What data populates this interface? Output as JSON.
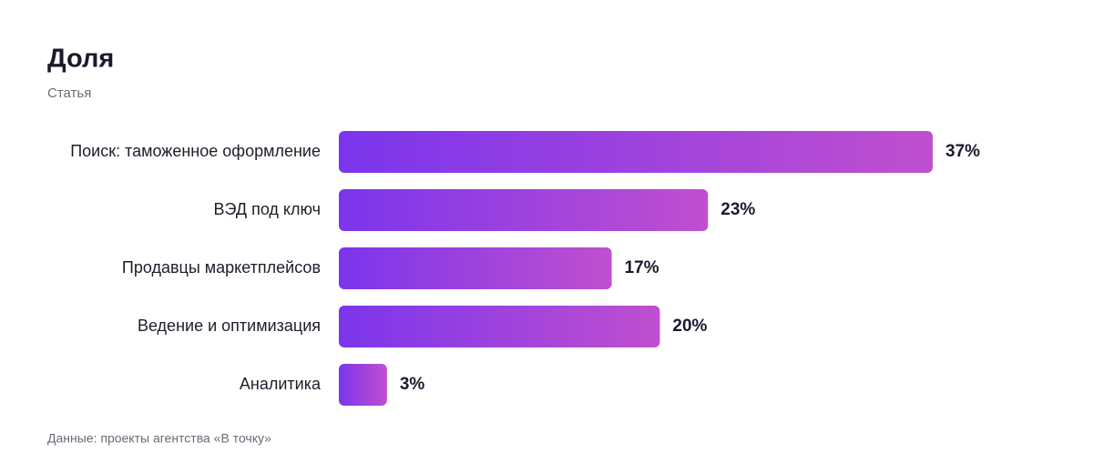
{
  "chart_data": {
    "type": "bar",
    "orientation": "horizontal",
    "title": "Доля",
    "subtitle": "Статья",
    "categories": [
      "Поиск: таможенное оформление",
      "ВЭД под ключ",
      "Продавцы маркетплейсов",
      "Ведение и оптимизация",
      "Аналитика"
    ],
    "values": [
      37,
      23,
      17,
      20,
      3
    ],
    "value_labels": [
      "37%",
      "23%",
      "17%",
      "20%",
      "3%"
    ],
    "color_start": "#7b35ec",
    "color_end": "#c04fcf",
    "source": "Данные: проекты агентства «В точку»"
  }
}
